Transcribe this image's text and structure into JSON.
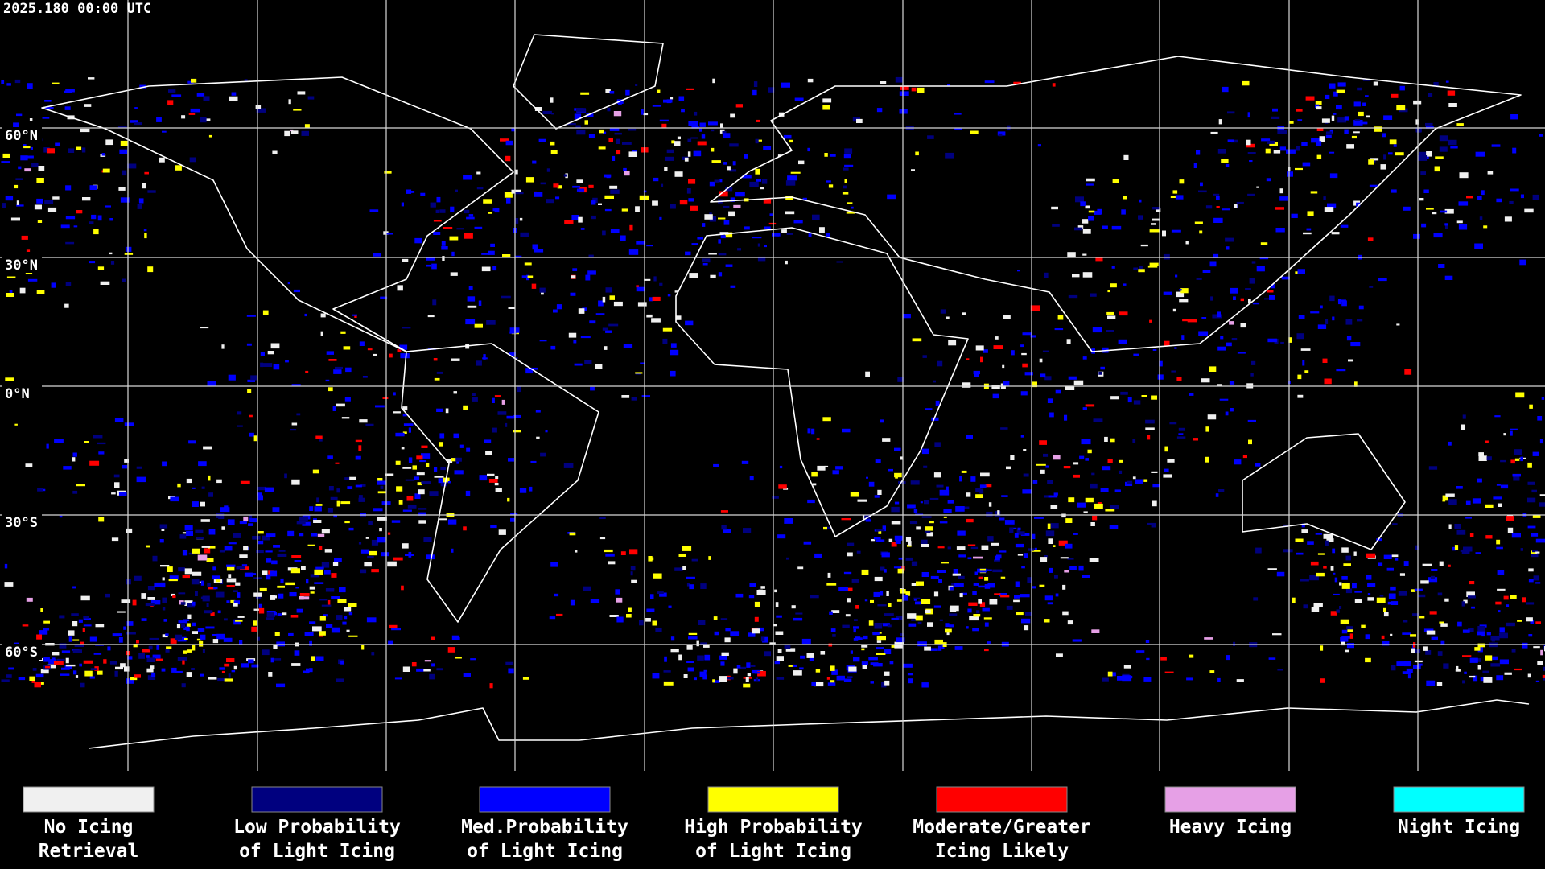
{
  "header": {
    "timestamp": "2025.180 00:00 UTC"
  },
  "map": {
    "latitude_labels": [
      "60°N",
      "30°N",
      "0°N",
      "30°S",
      "60°S"
    ]
  },
  "legend": {
    "items": [
      {
        "label": [
          "No Icing",
          "Retrieval"
        ],
        "color": "#f0f0f0"
      },
      {
        "label": [
          "Low Probability",
          "of Light Icing"
        ],
        "color": "#00007f"
      },
      {
        "label": [
          "Med.Probability",
          "of Light Icing"
        ],
        "color": "#0000ff"
      },
      {
        "label": [
          "High Probability",
          "of Light Icing"
        ],
        "color": "#ffff00"
      },
      {
        "label": [
          "Moderate/Greater",
          "Icing Likely"
        ],
        "color": "#ff0000"
      },
      {
        "label": [
          "Heavy Icing"
        ],
        "color": "#e6a0e6"
      },
      {
        "label": [
          "Night Icing"
        ],
        "color": "#00ffff"
      }
    ]
  }
}
